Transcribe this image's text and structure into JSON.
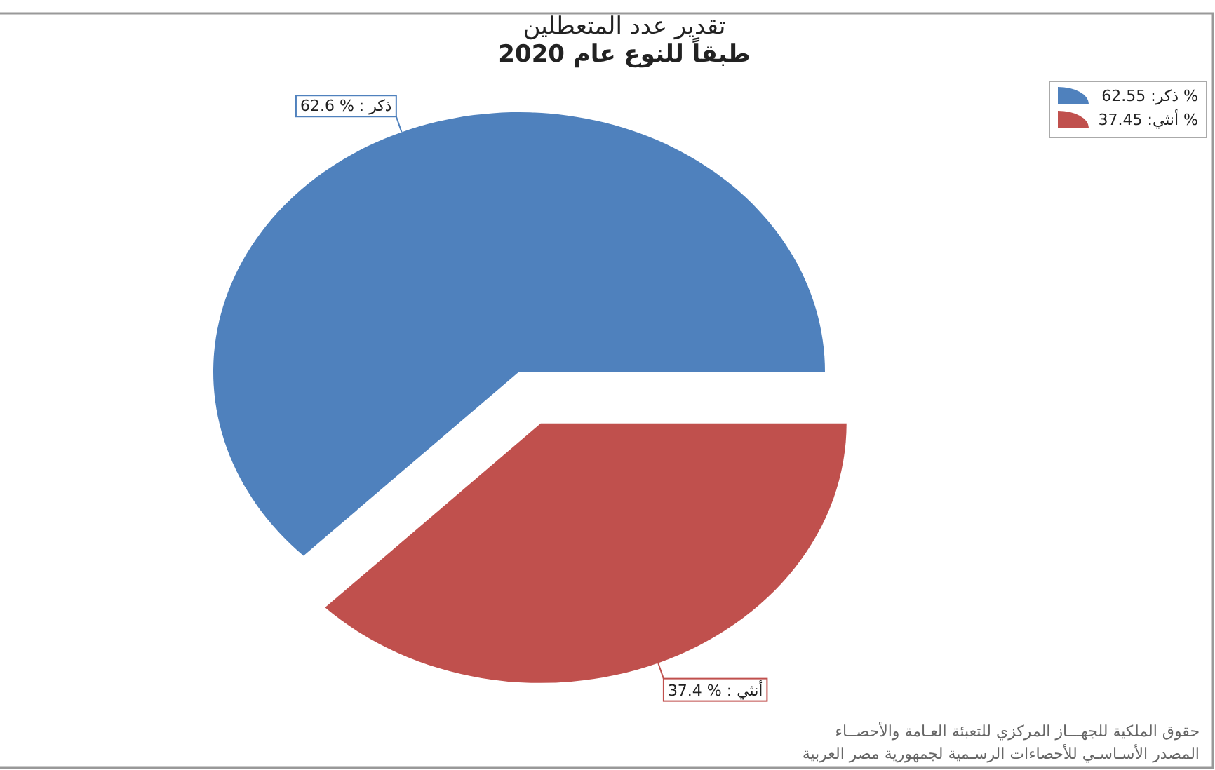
{
  "chart_data": {
    "type": "pie",
    "title": "تقدير عدد المتعطلين",
    "subtitle": "طبقاً للنوع   عام 2020",
    "categories": [
      "62.55 :ذكر %",
      "37.45 :أنثي %"
    ],
    "values": [
      62.55,
      37.45
    ],
    "value_labels": [
      "62.6 % : ذكر",
      "37.4 % : أنثي"
    ],
    "colors": [
      "#4f81bd",
      "#c0504d"
    ],
    "legend": "top right",
    "annotations": [
      "حقوق الملكية للجهـــاز المركزي للتعبئة العـامة والأحصــاء",
      "المصدر الأسـاسـي للأحصاءات الرسـمية لجمهورية مصر العربية"
    ]
  }
}
